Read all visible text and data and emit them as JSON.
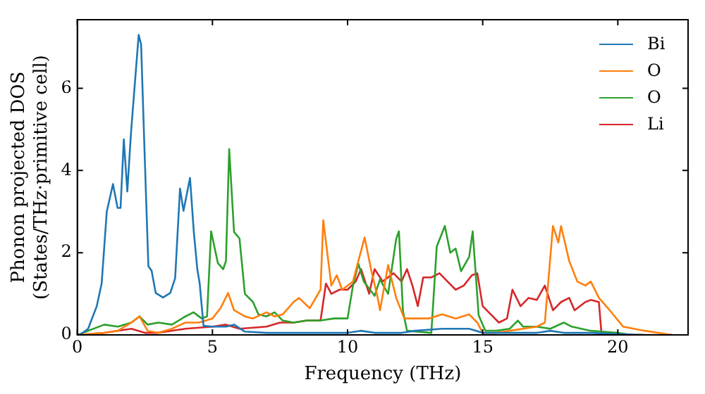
{
  "chart_data": {
    "type": "line",
    "xlabel": "Frequency (THz)",
    "ylabel": "Phonon projected DOS\n(States/THz·primitive cell)",
    "xlim": [
      0,
      22.6
    ],
    "xticks": [
      0,
      5,
      10,
      15,
      20
    ],
    "ylim": [
      0,
      7.67
    ],
    "yticks": [
      0,
      2,
      4,
      6
    ],
    "grid": false,
    "legend": "top right",
    "marker": "none",
    "line_style": "solid",
    "series": [
      {
        "name": "Bi",
        "color": "#1f77b4",
        "x": [
          0,
          0.1,
          0.4,
          0.72,
          0.9,
          1.09,
          1.32,
          1.49,
          1.6,
          1.72,
          1.85,
          1.99,
          2.27,
          2.36,
          2.5,
          2.63,
          2.75,
          2.9,
          3.17,
          3.44,
          3.62,
          3.8,
          3.93,
          4.17,
          4.31,
          4.44,
          4.53,
          4.67,
          5.0,
          5.5,
          5.8,
          6.2,
          7,
          8,
          9,
          10,
          10.5,
          11,
          12,
          12.5,
          13.5,
          14.5,
          15,
          16,
          17,
          17.5,
          18,
          18.5,
          19,
          20,
          21
        ],
        "values": [
          0,
          0,
          0.15,
          0.7,
          1.25,
          3.0,
          3.67,
          3.09,
          3.09,
          4.76,
          3.49,
          4.95,
          7.3,
          7.07,
          4.22,
          1.67,
          1.56,
          1.02,
          0.91,
          1.02,
          1.38,
          3.56,
          3.02,
          3.82,
          2.51,
          1.6,
          1.24,
          0.22,
          0.2,
          0.2,
          0.25,
          0.08,
          0.05,
          0.05,
          0.05,
          0.05,
          0.1,
          0.05,
          0.05,
          0.1,
          0.15,
          0.15,
          0.05,
          0.05,
          0.05,
          0.1,
          0.05,
          0.05,
          0.05,
          0.02,
          0
        ]
      },
      {
        "name": "O",
        "color": "#ff7f0e",
        "x": [
          0,
          1,
          1.5,
          2,
          2.3,
          2.6,
          3,
          3.5,
          4,
          4.5,
          5,
          5.3,
          5.58,
          5.8,
          6.2,
          6.5,
          7,
          7.3,
          7.6,
          8,
          8.2,
          8.6,
          9,
          9.1,
          9.4,
          9.6,
          9.8,
          10.2,
          10.4,
          10.63,
          10.9,
          11.1,
          11.2,
          11.5,
          11.8,
          12.1,
          12.5,
          13,
          13.5,
          14,
          14.5,
          14.8,
          15,
          15.5,
          16,
          17,
          17.3,
          17.6,
          17.8,
          17.9,
          18.2,
          18.5,
          18.8,
          19,
          19.3,
          19.7,
          20.2,
          21,
          21.5,
          22
        ],
        "values": [
          0,
          0.05,
          0.1,
          0.3,
          0.45,
          0.1,
          0.05,
          0.15,
          0.3,
          0.3,
          0.4,
          0.65,
          1.02,
          0.6,
          0.45,
          0.4,
          0.55,
          0.45,
          0.5,
          0.8,
          0.9,
          0.65,
          1.1,
          2.79,
          1.2,
          1.45,
          1.1,
          1.3,
          1.8,
          2.37,
          1.5,
          0.95,
          0.6,
          1.7,
          0.9,
          0.4,
          0.4,
          0.4,
          0.5,
          0.4,
          0.5,
          0.3,
          0.05,
          0.05,
          0.1,
          0.2,
          0.3,
          2.65,
          2.25,
          2.65,
          1.8,
          1.3,
          1.2,
          1.3,
          0.9,
          0.6,
          0.2,
          0.1,
          0.05,
          0
        ]
      },
      {
        "name": "O",
        "color": "#2ca02c",
        "x": [
          0,
          1,
          1.5,
          2,
          2.3,
          2.6,
          3,
          3.5,
          4,
          4.3,
          4.6,
          4.8,
          4.95,
          5.2,
          5.4,
          5.5,
          5.62,
          5.8,
          6,
          6.2,
          6.5,
          6.7,
          7,
          7.3,
          7.6,
          8,
          8.5,
          9,
          9.5,
          10,
          10.2,
          10.4,
          10.6,
          11,
          11.2,
          11.5,
          11.8,
          11.9,
          12.05,
          12.2,
          13.1,
          13.3,
          13.6,
          13.8,
          14,
          14.2,
          14.5,
          14.63,
          14.85,
          15.1,
          15.5,
          16,
          16.3,
          16.5,
          17,
          17.5,
          18,
          18.3,
          19,
          20,
          20.5
        ],
        "values": [
          0,
          0.25,
          0.2,
          0.3,
          0.45,
          0.25,
          0.3,
          0.25,
          0.45,
          0.55,
          0.4,
          0.45,
          2.52,
          1.75,
          1.6,
          1.8,
          4.52,
          2.5,
          2.35,
          1.0,
          0.8,
          0.5,
          0.45,
          0.55,
          0.35,
          0.3,
          0.35,
          0.35,
          0.4,
          0.4,
          1.2,
          1.73,
          1.3,
          0.95,
          1.35,
          1.0,
          2.34,
          2.52,
          0.58,
          0.1,
          0.05,
          2.15,
          2.65,
          2.0,
          2.1,
          1.55,
          1.9,
          2.52,
          0.48,
          0.1,
          0.1,
          0.15,
          0.35,
          0.2,
          0.2,
          0.15,
          0.3,
          0.2,
          0.1,
          0.05,
          0
        ]
      },
      {
        "name": "Li",
        "color": "#d62728",
        "x": [
          0,
          1,
          2,
          2.5,
          3,
          4,
          5,
          5.5,
          6,
          7,
          7.5,
          8,
          8.5,
          9,
          9.2,
          9.4,
          9.7,
          10,
          10.3,
          10.5,
          10.8,
          11,
          11.3,
          11.7,
          12,
          12.2,
          12.4,
          12.6,
          12.8,
          13.1,
          13.4,
          13.7,
          14,
          14.3,
          14.6,
          14.8,
          15,
          15.3,
          15.6,
          15.9,
          16.1,
          16.4,
          16.7,
          17,
          17.3,
          17.6,
          17.9,
          18.2,
          18.4,
          18.8,
          19,
          19.3,
          19.4,
          20,
          21,
          22
        ],
        "values": [
          0,
          0.05,
          0.15,
          0.05,
          0.05,
          0.15,
          0.2,
          0.25,
          0.15,
          0.2,
          0.3,
          0.3,
          0.35,
          0.35,
          1.25,
          1.0,
          1.1,
          1.1,
          1.3,
          1.6,
          1.0,
          1.6,
          1.3,
          1.5,
          1.3,
          1.6,
          1.2,
          0.7,
          1.4,
          1.4,
          1.5,
          1.3,
          1.1,
          1.2,
          1.45,
          1.5,
          0.7,
          0.5,
          0.3,
          0.4,
          1.1,
          0.7,
          0.9,
          0.85,
          1.2,
          0.6,
          0.8,
          0.9,
          0.6,
          0.8,
          0.85,
          0.8,
          0,
          0,
          0,
          0
        ]
      }
    ]
  }
}
